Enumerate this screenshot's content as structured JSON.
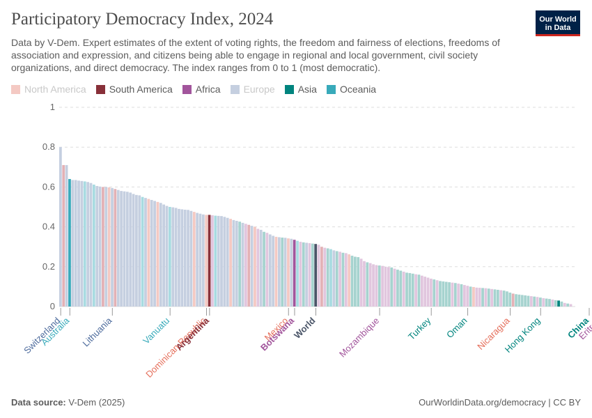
{
  "header": {
    "title": "Participatory Democracy Index, 2024",
    "subtitle": "Data by V-Dem. Expert estimates of the extent of voting rights, the freedom and fairness of elections, freedoms of association and expression, and citizens being able to engage in regional and local government, civil society organizations, and direct democracy. The index ranges from 0 to 1 (most democratic).",
    "logo_line1": "Our World",
    "logo_line2": "in Data"
  },
  "legend": [
    {
      "label": "North America",
      "color": "#f4c9c3",
      "dim": true
    },
    {
      "label": "South America",
      "color": "#883039",
      "dim": false
    },
    {
      "label": "Africa",
      "color": "#a2559c",
      "dim": false
    },
    {
      "label": "Europe",
      "color": "#c5cfe0",
      "dim": true
    },
    {
      "label": "Asia",
      "color": "#00847e",
      "dim": false
    },
    {
      "label": "Oceania",
      "color": "#38aaba",
      "dim": false
    }
  ],
  "footer": {
    "source_label": "Data source:",
    "source_value": "V-Dem (2025)",
    "right": "OurWorldinData.org/democracy | CC BY"
  },
  "chart_data": {
    "type": "bar",
    "title": "Participatory Democracy Index, 2024",
    "ylim": [
      0,
      1
    ],
    "yticks": [
      0,
      0.2,
      0.4,
      0.6,
      0.8,
      1
    ],
    "grid": true,
    "palette": {
      "North America": "#f4c9c3",
      "South America": "#e3b1b5",
      "Africa": "#e1c6de",
      "Europe": "#c5cfe0",
      "Asia": "#a6d3cf",
      "Oceania": "#a8dbe1",
      "World": "#4a5568",
      "highlight_South America": "#883039",
      "highlight_Africa": "#a2559c",
      "highlight_Asia": "#00847e",
      "highlight_Oceania": "#38aaba"
    },
    "label_colors": {
      "Europe": "#4c6a9c",
      "Oceania": "#38aaba",
      "South America": "#883039",
      "North America": "#e56e5a",
      "Africa": "#a2559c",
      "Asia": "#00847e",
      "World": "#4a5568"
    },
    "bars": [
      {
        "v": 0.8,
        "r": "Europe"
      },
      {
        "v": 0.71,
        "r": "South America"
      },
      {
        "v": 0.71,
        "r": "Europe"
      },
      {
        "v": 0.64,
        "r": "Oceania",
        "h": true
      },
      {
        "v": 0.635,
        "r": "Europe"
      },
      {
        "v": 0.635,
        "r": "Europe"
      },
      {
        "v": 0.632,
        "r": "Europe"
      },
      {
        "v": 0.63,
        "r": "Europe"
      },
      {
        "v": 0.628,
        "r": "Oceania"
      },
      {
        "v": 0.625,
        "r": "Europe"
      },
      {
        "v": 0.62,
        "r": "Europe"
      },
      {
        "v": 0.612,
        "r": "Oceania"
      },
      {
        "v": 0.605,
        "r": "Europe"
      },
      {
        "v": 0.602,
        "r": "Europe"
      },
      {
        "v": 0.6,
        "r": "South America"
      },
      {
        "v": 0.6,
        "r": "Europe"
      },
      {
        "v": 0.598,
        "r": "North America"
      },
      {
        "v": 0.595,
        "r": "Europe"
      },
      {
        "v": 0.59,
        "r": "South America"
      },
      {
        "v": 0.585,
        "r": "Europe"
      },
      {
        "v": 0.58,
        "r": "Europe"
      },
      {
        "v": 0.578,
        "r": "Europe"
      },
      {
        "v": 0.576,
        "r": "Europe"
      },
      {
        "v": 0.572,
        "r": "Europe"
      },
      {
        "v": 0.565,
        "r": "Europe"
      },
      {
        "v": 0.56,
        "r": "Europe"
      },
      {
        "v": 0.558,
        "r": "Europe"
      },
      {
        "v": 0.55,
        "r": "Oceania"
      },
      {
        "v": 0.545,
        "r": "Europe"
      },
      {
        "v": 0.54,
        "r": "North America"
      },
      {
        "v": 0.535,
        "r": "Europe"
      },
      {
        "v": 0.53,
        "r": "Europe"
      },
      {
        "v": 0.525,
        "r": "North America"
      },
      {
        "v": 0.52,
        "r": "Europe"
      },
      {
        "v": 0.512,
        "r": "Europe"
      },
      {
        "v": 0.505,
        "r": "Europe"
      },
      {
        "v": 0.5,
        "r": "Oceania"
      },
      {
        "v": 0.498,
        "r": "Europe"
      },
      {
        "v": 0.495,
        "r": "Europe"
      },
      {
        "v": 0.49,
        "r": "Europe"
      },
      {
        "v": 0.488,
        "r": "Europe"
      },
      {
        "v": 0.486,
        "r": "Europe"
      },
      {
        "v": 0.485,
        "r": "Europe"
      },
      {
        "v": 0.48,
        "r": "Europe"
      },
      {
        "v": 0.475,
        "r": "North America"
      },
      {
        "v": 0.47,
        "r": "Europe"
      },
      {
        "v": 0.466,
        "r": "Europe"
      },
      {
        "v": 0.462,
        "r": "Europe"
      },
      {
        "v": 0.46,
        "r": "North America"
      },
      {
        "v": 0.46,
        "r": "South America",
        "h": true
      },
      {
        "v": 0.458,
        "r": "Africa"
      },
      {
        "v": 0.456,
        "r": "Oceania"
      },
      {
        "v": 0.455,
        "r": "Europe"
      },
      {
        "v": 0.454,
        "r": "Europe"
      },
      {
        "v": 0.45,
        "r": "Europe"
      },
      {
        "v": 0.445,
        "r": "Europe"
      },
      {
        "v": 0.44,
        "r": "North America"
      },
      {
        "v": 0.434,
        "r": "Europe"
      },
      {
        "v": 0.43,
        "r": "Europe"
      },
      {
        "v": 0.426,
        "r": "Asia"
      },
      {
        "v": 0.42,
        "r": "Europe"
      },
      {
        "v": 0.415,
        "r": "Africa"
      },
      {
        "v": 0.41,
        "r": "South America"
      },
      {
        "v": 0.405,
        "r": "Europe"
      },
      {
        "v": 0.4,
        "r": "North America"
      },
      {
        "v": 0.39,
        "r": "Africa"
      },
      {
        "v": 0.385,
        "r": "Europe"
      },
      {
        "v": 0.375,
        "r": "Asia"
      },
      {
        "v": 0.37,
        "r": "Africa"
      },
      {
        "v": 0.362,
        "r": "Europe"
      },
      {
        "v": 0.355,
        "r": "Europe"
      },
      {
        "v": 0.35,
        "r": "North America"
      },
      {
        "v": 0.348,
        "r": "Europe"
      },
      {
        "v": 0.346,
        "r": "Asia"
      },
      {
        "v": 0.345,
        "r": "Europe"
      },
      {
        "v": 0.342,
        "r": "North America"
      },
      {
        "v": 0.34,
        "r": "Europe"
      },
      {
        "v": 0.335,
        "r": "Africa",
        "h": true
      },
      {
        "v": 0.33,
        "r": "Oceania"
      },
      {
        "v": 0.325,
        "r": "Africa"
      },
      {
        "v": 0.322,
        "r": "Asia"
      },
      {
        "v": 0.32,
        "r": "Europe"
      },
      {
        "v": 0.318,
        "r": "Africa"
      },
      {
        "v": 0.316,
        "r": "Asia"
      },
      {
        "v": 0.314,
        "r": "World",
        "h": true
      },
      {
        "v": 0.31,
        "r": "Africa"
      },
      {
        "v": 0.3,
        "r": "South America"
      },
      {
        "v": 0.295,
        "r": "Africa"
      },
      {
        "v": 0.292,
        "r": "Asia"
      },
      {
        "v": 0.288,
        "r": "Oceania"
      },
      {
        "v": 0.282,
        "r": "Europe"
      },
      {
        "v": 0.278,
        "r": "Asia"
      },
      {
        "v": 0.275,
        "r": "Africa"
      },
      {
        "v": 0.27,
        "r": "Asia"
      },
      {
        "v": 0.268,
        "r": "Africa"
      },
      {
        "v": 0.262,
        "r": "North America"
      },
      {
        "v": 0.255,
        "r": "Asia"
      },
      {
        "v": 0.25,
        "r": "Asia"
      },
      {
        "v": 0.248,
        "r": "Asia"
      },
      {
        "v": 0.24,
        "r": "Africa"
      },
      {
        "v": 0.228,
        "r": "Africa"
      },
      {
        "v": 0.222,
        "r": "Asia"
      },
      {
        "v": 0.218,
        "r": "Africa"
      },
      {
        "v": 0.212,
        "r": "Africa"
      },
      {
        "v": 0.208,
        "r": "Africa"
      },
      {
        "v": 0.206,
        "r": "Asia"
      },
      {
        "v": 0.204,
        "r": "Africa"
      },
      {
        "v": 0.2,
        "r": "Africa"
      },
      {
        "v": 0.198,
        "r": "Africa"
      },
      {
        "v": 0.196,
        "r": "Asia"
      },
      {
        "v": 0.19,
        "r": "Africa"
      },
      {
        "v": 0.185,
        "r": "Asia"
      },
      {
        "v": 0.18,
        "r": "Asia"
      },
      {
        "v": 0.175,
        "r": "Africa"
      },
      {
        "v": 0.17,
        "r": "Asia"
      },
      {
        "v": 0.168,
        "r": "Asia"
      },
      {
        "v": 0.165,
        "r": "Asia"
      },
      {
        "v": 0.162,
        "r": "Africa"
      },
      {
        "v": 0.16,
        "r": "Asia"
      },
      {
        "v": 0.155,
        "r": "Africa"
      },
      {
        "v": 0.15,
        "r": "Africa"
      },
      {
        "v": 0.145,
        "r": "Africa"
      },
      {
        "v": 0.14,
        "r": "Africa"
      },
      {
        "v": 0.136,
        "r": "Asia"
      },
      {
        "v": 0.132,
        "r": "Africa"
      },
      {
        "v": 0.128,
        "r": "Asia"
      },
      {
        "v": 0.126,
        "r": "Asia"
      },
      {
        "v": 0.124,
        "r": "Asia"
      },
      {
        "v": 0.122,
        "r": "Asia"
      },
      {
        "v": 0.12,
        "r": "Africa"
      },
      {
        "v": 0.118,
        "r": "Asia"
      },
      {
        "v": 0.115,
        "r": "Africa"
      },
      {
        "v": 0.112,
        "r": "Asia"
      },
      {
        "v": 0.108,
        "r": "Africa"
      },
      {
        "v": 0.104,
        "r": "Africa"
      },
      {
        "v": 0.1,
        "r": "Asia"
      },
      {
        "v": 0.098,
        "r": "North America"
      },
      {
        "v": 0.095,
        "r": "Africa"
      },
      {
        "v": 0.094,
        "r": "Africa"
      },
      {
        "v": 0.093,
        "r": "Asia"
      },
      {
        "v": 0.092,
        "r": "Africa"
      },
      {
        "v": 0.09,
        "r": "Asia"
      },
      {
        "v": 0.088,
        "r": "Africa"
      },
      {
        "v": 0.086,
        "r": "Asia"
      },
      {
        "v": 0.084,
        "r": "Asia"
      },
      {
        "v": 0.082,
        "r": "Africa"
      },
      {
        "v": 0.08,
        "r": "Asia"
      },
      {
        "v": 0.076,
        "r": "Asia"
      },
      {
        "v": 0.07,
        "r": "Asia"
      },
      {
        "v": 0.065,
        "r": "South America"
      },
      {
        "v": 0.062,
        "r": "Asia"
      },
      {
        "v": 0.06,
        "r": "Asia"
      },
      {
        "v": 0.058,
        "r": "Asia"
      },
      {
        "v": 0.056,
        "r": "Asia"
      },
      {
        "v": 0.054,
        "r": "Asia"
      },
      {
        "v": 0.052,
        "r": "Africa"
      },
      {
        "v": 0.05,
        "r": "Asia"
      },
      {
        "v": 0.048,
        "r": "Africa"
      },
      {
        "v": 0.045,
        "r": "Asia"
      },
      {
        "v": 0.042,
        "r": "Africa"
      },
      {
        "v": 0.04,
        "r": "Asia"
      },
      {
        "v": 0.038,
        "r": "Asia"
      },
      {
        "v": 0.035,
        "r": "Africa"
      },
      {
        "v": 0.032,
        "r": "Asia"
      },
      {
        "v": 0.03,
        "r": "Asia",
        "h": true
      },
      {
        "v": 0.025,
        "r": "Asia"
      },
      {
        "v": 0.018,
        "r": "Africa"
      },
      {
        "v": 0.015,
        "r": "Asia"
      },
      {
        "v": 0.012,
        "r": "Africa"
      }
    ],
    "labels": [
      {
        "name": "Switzerland",
        "i": 0,
        "region": "Europe",
        "bold": false
      },
      {
        "name": "Australia",
        "i": 3,
        "region": "Oceania",
        "bold": false
      },
      {
        "name": "Lithuania",
        "i": 17,
        "region": "Europe",
        "bold": false
      },
      {
        "name": "Vanuatu",
        "i": 36,
        "region": "Oceania",
        "bold": false
      },
      {
        "name": "Dominican Republic",
        "i": 48,
        "region": "North America",
        "bold": false
      },
      {
        "name": "Argentina",
        "i": 49,
        "region": "South America",
        "bold": true
      },
      {
        "name": "Mexico",
        "i": 75,
        "region": "North America",
        "bold": false
      },
      {
        "name": "Botswana",
        "i": 77,
        "region": "Africa",
        "bold": true
      },
      {
        "name": "World",
        "i": 84,
        "region": "World",
        "bold": true
      },
      {
        "name": "Mozambique",
        "i": 105,
        "region": "Africa",
        "bold": false
      },
      {
        "name": "Turkey",
        "i": 122,
        "region": "Asia",
        "bold": false
      },
      {
        "name": "Oman",
        "i": 134,
        "region": "Asia",
        "bold": false
      },
      {
        "name": "Nicaragua",
        "i": 148,
        "region": "North America",
        "bold": false
      },
      {
        "name": "Hong Kong",
        "i": 158,
        "region": "Asia",
        "bold": false
      },
      {
        "name": "China",
        "i": 174,
        "region": "Asia",
        "bold": true
      },
      {
        "name": "Eritrea",
        "i": 178,
        "region": "Africa",
        "bold": false
      }
    ]
  }
}
